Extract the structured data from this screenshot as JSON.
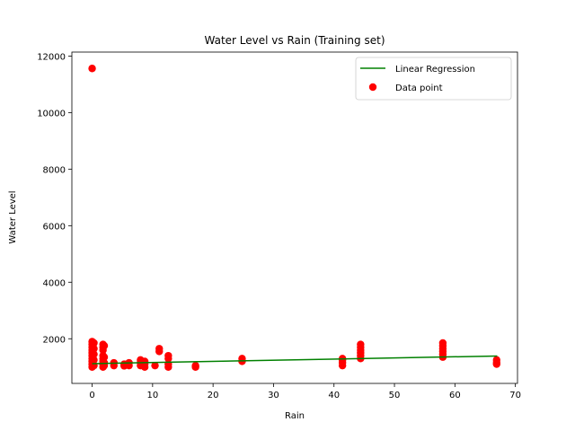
{
  "chart_data": {
    "type": "scatter",
    "title": "Water Level vs Rain (Training set)",
    "xlabel": "Rain",
    "ylabel": "Water Level",
    "xlim": [
      -3.35,
      70.35
    ],
    "ylim": [
      420,
      12140
    ],
    "xticks": [
      0,
      10,
      20,
      30,
      40,
      50,
      60,
      70
    ],
    "yticks": [
      2000,
      4000,
      6000,
      8000,
      10000,
      12000
    ],
    "grid": false,
    "legend_position": "top-right",
    "colors": {
      "points": "#ff0000",
      "line": "#008000"
    },
    "series": [
      {
        "name": "Linear Regression",
        "kind": "line",
        "x": [
          0,
          67
        ],
        "y": [
          1120,
          1390
        ]
      },
      {
        "name": "Data point",
        "kind": "scatter",
        "points": [
          [
            0,
            11560
          ],
          [
            0,
            1000
          ],
          [
            0,
            1100
          ],
          [
            0,
            1200
          ],
          [
            0,
            1300
          ],
          [
            0,
            1400
          ],
          [
            0,
            1500
          ],
          [
            0,
            1600
          ],
          [
            0,
            1700
          ],
          [
            0,
            1800
          ],
          [
            0,
            1900
          ],
          [
            0.3,
            1050
          ],
          [
            0.3,
            1250
          ],
          [
            0.3,
            1450
          ],
          [
            0.3,
            1650
          ],
          [
            0.3,
            1850
          ],
          [
            1.8,
            1000
          ],
          [
            1.8,
            1100
          ],
          [
            1.8,
            1200
          ],
          [
            1.8,
            1300
          ],
          [
            1.8,
            1400
          ],
          [
            1.8,
            1600
          ],
          [
            1.8,
            1700
          ],
          [
            1.8,
            1800
          ],
          [
            2.0,
            1050
          ],
          [
            2.0,
            1150
          ],
          [
            2.0,
            1350
          ],
          [
            2.0,
            1750
          ],
          [
            3.6,
            1050
          ],
          [
            3.6,
            1150
          ],
          [
            5.3,
            1040
          ],
          [
            5.3,
            1100
          ],
          [
            6.1,
            1050
          ],
          [
            6.1,
            1150
          ],
          [
            8.0,
            1050
          ],
          [
            8.0,
            1150
          ],
          [
            8.0,
            1250
          ],
          [
            8.7,
            1000
          ],
          [
            8.7,
            1100
          ],
          [
            8.7,
            1200
          ],
          [
            10.4,
            1050
          ],
          [
            11.1,
            1550
          ],
          [
            11.1,
            1650
          ],
          [
            12.6,
            1000
          ],
          [
            12.6,
            1100
          ],
          [
            12.6,
            1300
          ],
          [
            12.6,
            1400
          ],
          [
            17.1,
            1000
          ],
          [
            17.1,
            1050
          ],
          [
            24.8,
            1200
          ],
          [
            24.8,
            1300
          ],
          [
            41.4,
            1050
          ],
          [
            41.4,
            1150
          ],
          [
            41.4,
            1250
          ],
          [
            41.4,
            1300
          ],
          [
            44.4,
            1300
          ],
          [
            44.4,
            1400
          ],
          [
            44.4,
            1500
          ],
          [
            44.4,
            1600
          ],
          [
            44.4,
            1700
          ],
          [
            44.4,
            1800
          ],
          [
            58.0,
            1350
          ],
          [
            58.0,
            1450
          ],
          [
            58.0,
            1550
          ],
          [
            58.0,
            1650
          ],
          [
            58.0,
            1750
          ],
          [
            58.0,
            1850
          ],
          [
            66.9,
            1100
          ],
          [
            66.9,
            1150
          ],
          [
            66.9,
            1250
          ]
        ]
      }
    ]
  }
}
